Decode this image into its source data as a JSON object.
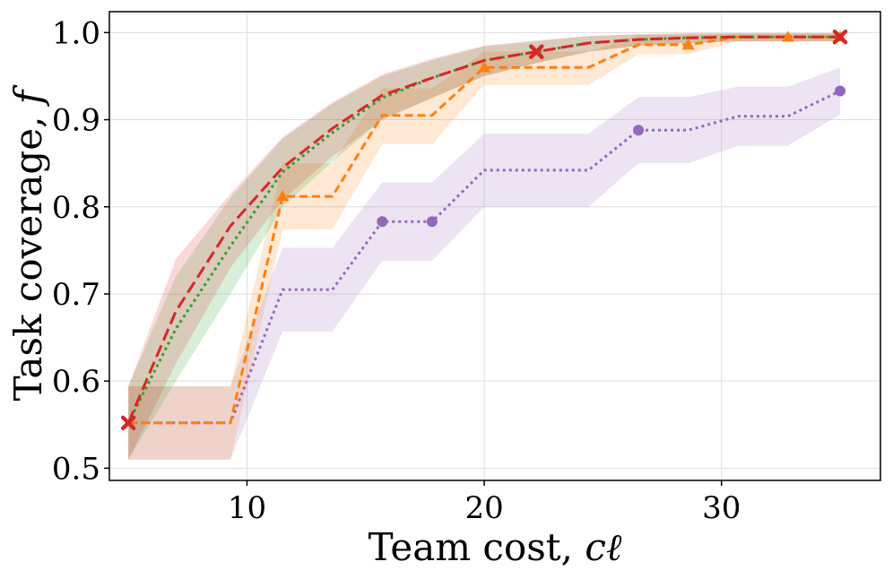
{
  "chart_data": {
    "type": "line",
    "title": "",
    "xlabel": "Team cost, ",
    "xlabel_symbol": "cℓ",
    "ylabel": "Task coverage, ",
    "ylabel_symbol": "f",
    "xlim": [
      4.2,
      36.7
    ],
    "ylim": [
      0.486,
      1.024
    ],
    "xticks": [
      10,
      20,
      30
    ],
    "xtick_labels": [
      "10",
      "20",
      "30"
    ],
    "yticks": [
      0.5,
      0.6,
      0.7,
      0.8,
      0.9,
      1.0
    ],
    "ytick_labels": [
      "0.5",
      "0.6",
      "0.7",
      "0.8",
      "0.9",
      "1.0"
    ],
    "grid": true,
    "series": [
      {
        "name": "purple-dotted",
        "color": "#9467bd",
        "dash": "dotted",
        "marker": "circle",
        "step": false,
        "x": [
          5,
          9.3,
          11.5,
          13.6,
          15.7,
          17.8,
          20,
          24.4,
          26.5,
          28.6,
          30.7,
          32.8,
          35
        ],
        "y": [
          0.552,
          0.552,
          0.705,
          0.705,
          0.783,
          0.783,
          0.842,
          0.842,
          0.888,
          0.888,
          0.904,
          0.904,
          0.933
        ],
        "lower": [
          0.51,
          0.51,
          0.657,
          0.657,
          0.738,
          0.738,
          0.8,
          0.8,
          0.85,
          0.85,
          0.87,
          0.87,
          0.906
        ],
        "upper": [
          0.594,
          0.594,
          0.753,
          0.753,
          0.828,
          0.828,
          0.884,
          0.884,
          0.926,
          0.926,
          0.938,
          0.938,
          0.96
        ],
        "marker_x": [
          15.7,
          17.8,
          26.5,
          35
        ],
        "marker_y": [
          0.783,
          0.783,
          0.888,
          0.933
        ]
      },
      {
        "name": "orange-dashed",
        "color": "#ff7f0e",
        "dash": "dashed",
        "marker": "triangle",
        "x": [
          5,
          9.3,
          11.5,
          13.6,
          15.7,
          17.8,
          20,
          24.4,
          26.5,
          28.6,
          30.7,
          32.8,
          35
        ],
        "y": [
          0.552,
          0.552,
          0.812,
          0.812,
          0.905,
          0.905,
          0.96,
          0.96,
          0.986,
          0.986,
          0.995,
          0.995,
          0.995
        ],
        "lower": [
          0.51,
          0.51,
          0.774,
          0.774,
          0.872,
          0.872,
          0.94,
          0.94,
          0.975,
          0.975,
          0.99,
          0.99,
          0.99
        ],
        "upper": [
          0.594,
          0.594,
          0.85,
          0.85,
          0.936,
          0.936,
          0.978,
          0.978,
          0.997,
          0.997,
          0.999,
          0.999,
          0.999
        ],
        "marker_x": [
          11.5,
          20,
          28.6,
          32.8,
          35
        ],
        "marker_y": [
          0.812,
          0.96,
          0.986,
          0.995,
          0.995
        ]
      },
      {
        "name": "green-dotted",
        "color": "#2ca02c",
        "dash": "dotted",
        "marker": "none",
        "x": [
          5,
          7,
          9.3,
          11.5,
          13.6,
          15.7,
          17.8,
          20,
          22.2,
          24.4,
          26.5,
          28.6,
          30.7,
          32.8,
          35
        ],
        "y": [
          0.552,
          0.66,
          0.755,
          0.84,
          0.885,
          0.925,
          0.948,
          0.968,
          0.978,
          0.988,
          0.992,
          0.994,
          0.995,
          0.995,
          0.995
        ],
        "lower": [
          0.51,
          0.6,
          0.7,
          0.8,
          0.852,
          0.9,
          0.925,
          0.95,
          0.965,
          0.978,
          0.985,
          0.988,
          0.99,
          0.99,
          0.99
        ],
        "upper": [
          0.594,
          0.72,
          0.81,
          0.878,
          0.918,
          0.95,
          0.968,
          0.984,
          0.99,
          0.996,
          0.998,
          0.999,
          0.999,
          0.999,
          0.999
        ],
        "marker_x": [],
        "marker_y": []
      },
      {
        "name": "red-dashed",
        "color": "#d62728",
        "dash": "longdash",
        "marker": "x",
        "x": [
          5,
          7,
          9.3,
          11.5,
          13.6,
          15.7,
          17.8,
          20,
          22.2,
          24.4,
          26.5,
          28.6,
          30.7,
          32.8,
          35
        ],
        "y": [
          0.552,
          0.68,
          0.778,
          0.845,
          0.89,
          0.928,
          0.948,
          0.968,
          0.978,
          0.988,
          0.992,
          0.994,
          0.995,
          0.995,
          0.995
        ],
        "lower": [
          0.51,
          0.62,
          0.73,
          0.808,
          0.858,
          0.9,
          0.925,
          0.95,
          0.965,
          0.978,
          0.985,
          0.988,
          0.99,
          0.99,
          0.99
        ],
        "upper": [
          0.594,
          0.74,
          0.815,
          0.88,
          0.92,
          0.952,
          0.97,
          0.985,
          0.991,
          0.996,
          0.998,
          0.999,
          0.999,
          0.999,
          0.999
        ],
        "marker_x": [
          5,
          22.2,
          35
        ],
        "marker_y": [
          0.552,
          0.978,
          0.995
        ]
      }
    ]
  }
}
